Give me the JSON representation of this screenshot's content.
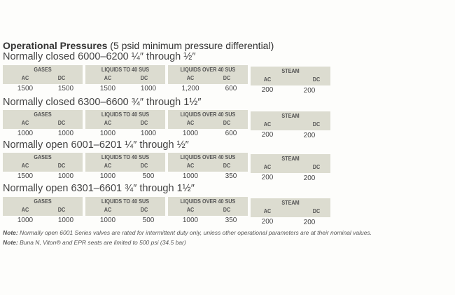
{
  "title": {
    "bold": "Operational Pressures",
    "rest": " (5 psid minimum pressure differential)"
  },
  "column_groups": [
    "GASES",
    "LIQUIDS TO 40 SUS",
    "LIQUIDS OVER 40 SUS",
    "STEAM"
  ],
  "sub_columns": [
    "AC",
    "DC"
  ],
  "sections": [
    {
      "label": "Normally closed 6000–6200 ¼″ through ½″",
      "values": [
        "1500",
        "1500",
        "1500",
        "1000",
        "1,200",
        "600",
        "200",
        "200"
      ]
    },
    {
      "label": "Normally closed 6300–6600 ¾″ through 1½″",
      "values": [
        "1000",
        "1000",
        "1000",
        "1000",
        "1000",
        "600",
        "200",
        "200"
      ]
    },
    {
      "label": "Normally open 6001–6201 ¼″ through ½″",
      "values": [
        "1500",
        "1000",
        "1000",
        "500",
        "1000",
        "350",
        "200",
        "200"
      ]
    },
    {
      "label": "Normally open 6301–6601 ¾″ through 1½″",
      "values": [
        "1000",
        "1000",
        "1000",
        "500",
        "1000",
        "350",
        "200",
        "200"
      ]
    }
  ],
  "notes": [
    {
      "label": "Note:",
      "text": " Normally open 6001 Series valves are rated for intermittent duty only, unless other operational parameters are at their nominal values."
    },
    {
      "label": "Note:",
      "text": " Buna N, Viton® and EPR seats are limited to 500 psi (34.5 bar)"
    }
  ]
}
